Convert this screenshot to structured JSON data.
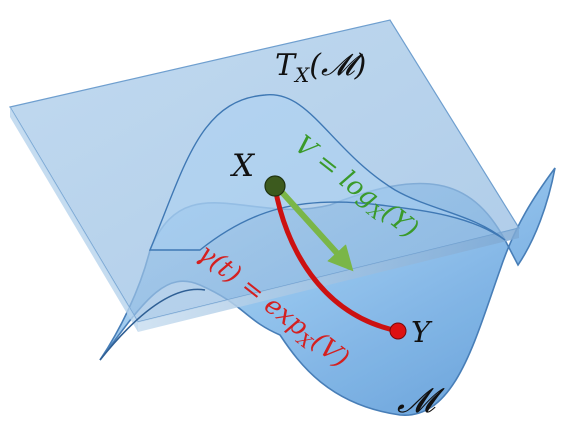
{
  "labels": {
    "tangent_space": "T",
    "tangent_space_sub": "X",
    "tangent_space_arg": "(𝓜)",
    "point_x": "X",
    "point_y": "Y",
    "manifold": "𝓜",
    "log_map_lhs": "V = log",
    "log_map_sub": "X",
    "log_map_arg": "(Y)",
    "exp_map_lhs": "γ(t) = exp",
    "exp_map_sub": "X",
    "exp_map_arg": "(V)"
  },
  "colors": {
    "plane_fill": "#9cc3e6",
    "plane_edge": "#6f9fcf",
    "manifold_fill": "#7fb6e8",
    "manifold_light": "#cde5f8",
    "manifold_edge": "#3f78b4",
    "geodesic": "#cc1111",
    "tangent_vector": "#7ab648",
    "log_text": "#3a9a2a",
    "exp_text": "#d42020",
    "point_x": "#3c5a1e",
    "point_y": "#dd1111",
    "text": "#111111"
  }
}
